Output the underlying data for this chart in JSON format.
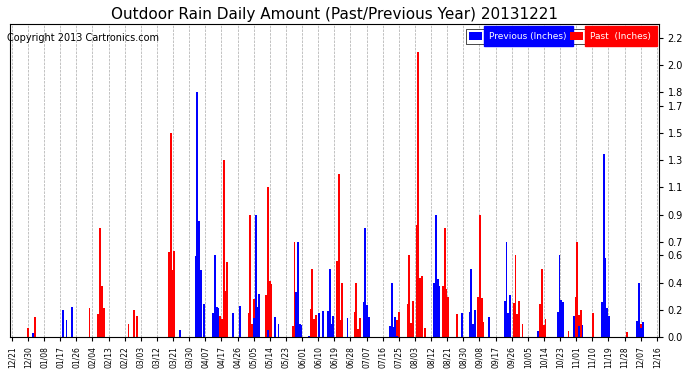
{
  "title": "Outdoor Rain Daily Amount (Past/Previous Year) 20131221",
  "copyright": "Copyright 2013 Cartronics.com",
  "yticks": [
    0.0,
    0.2,
    0.4,
    0.6,
    0.7,
    0.9,
    1.1,
    1.3,
    1.5,
    1.7,
    1.8,
    2.0,
    2.2
  ],
  "ylim": [
    0,
    2.3
  ],
  "bg_color": "#ffffff",
  "grid_color": "#aaaaaa",
  "legend_previous_label": "Previous (Inches)",
  "legend_past_label": "Past  (Inches)",
  "legend_previous_bg": "#0000ff",
  "legend_past_bg": "#ff0000",
  "previous_color": "#0000ff",
  "past_color": "#ff0000",
  "title_fontsize": 11,
  "copyright_fontsize": 7,
  "x_labels": [
    "12/21",
    "12/30",
    "01/08",
    "01/17",
    "01/26",
    "02/04",
    "02/13",
    "02/22",
    "03/03",
    "03/12",
    "03/21",
    "03/30",
    "04/07",
    "04/17",
    "04/26",
    "05/05",
    "05/14",
    "05/23",
    "06/01",
    "06/10",
    "06/19",
    "06/28",
    "07/07",
    "07/16",
    "07/25",
    "08/03",
    "08/12",
    "08/21",
    "08/30",
    "09/08",
    "09/17",
    "09/26",
    "10/05",
    "10/14",
    "10/23",
    "11/01",
    "11/10",
    "11/19",
    "11/28",
    "12/07",
    "12/16"
  ],
  "n_points": 366,
  "prev_spike_days": [
    105,
    115,
    138,
    162,
    180,
    200,
    215,
    240,
    260,
    280,
    310,
    335,
    355
  ],
  "prev_spike_vals": [
    1.8,
    0.6,
    0.9,
    0.7,
    0.5,
    0.8,
    0.4,
    0.9,
    0.5,
    0.7,
    0.6,
    1.35,
    0.4
  ],
  "past_spike_days": [
    50,
    90,
    120,
    135,
    145,
    160,
    170,
    185,
    195,
    225,
    230,
    245,
    265,
    285,
    300,
    320
  ],
  "past_spike_vals": [
    0.8,
    1.5,
    1.3,
    0.9,
    1.1,
    0.7,
    0.5,
    1.2,
    0.4,
    0.6,
    2.1,
    0.8,
    0.9,
    0.6,
    0.5,
    0.7
  ]
}
